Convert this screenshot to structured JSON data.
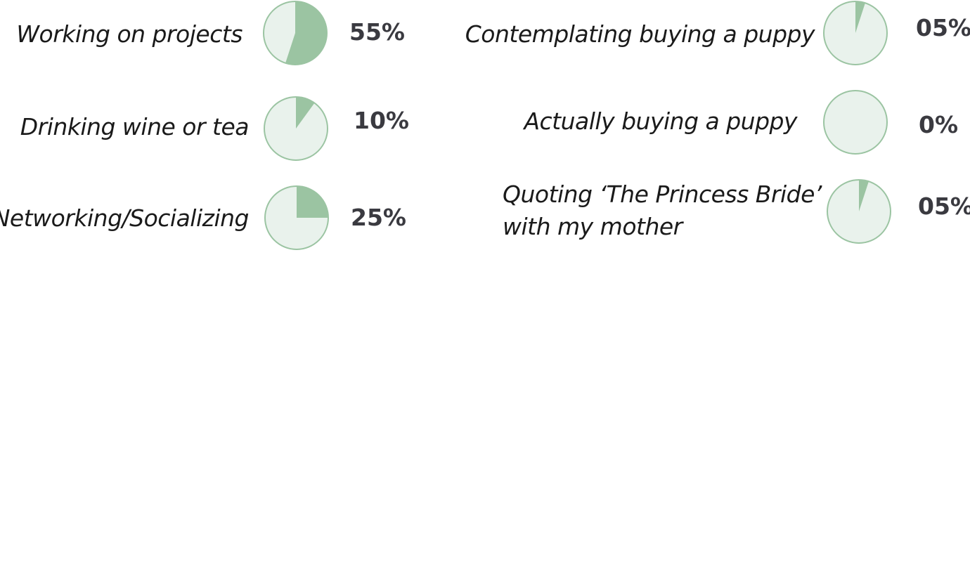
{
  "chart_data": {
    "type": "pie",
    "colors": {
      "filled": "#9bc4a2",
      "remainder": "#e9f2ec",
      "outline": "#9bc4a2",
      "label_text": "#1a1a1a",
      "value_text": "#3a3a40"
    },
    "items": [
      {
        "label": [
          "Working on projects"
        ],
        "value": 55,
        "display": "55%"
      },
      {
        "label": [
          "Drinking wine or tea"
        ],
        "value": 10,
        "display": "10%"
      },
      {
        "label": [
          "Networking/Socializing"
        ],
        "value": 25,
        "display": "25%"
      },
      {
        "label": [
          "Contemplating buying a puppy"
        ],
        "value": 5,
        "display": "05%"
      },
      {
        "label": [
          "Actually buying a puppy"
        ],
        "value": 0,
        "display": "0%"
      },
      {
        "label": [
          "Quoting ‘The Princess Bride’",
          "with my mother"
        ],
        "value": 5,
        "display": "05%"
      }
    ]
  }
}
